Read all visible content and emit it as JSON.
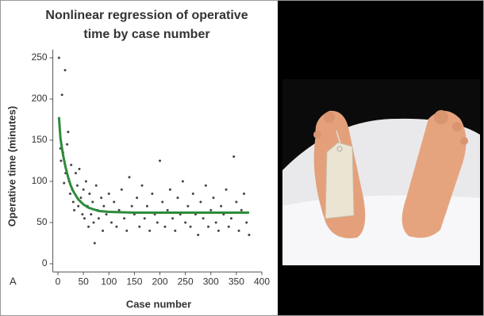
{
  "chart_data": {
    "type": "scatter",
    "title": [
      "Nonlinear regression of operative",
      "time by case number"
    ],
    "x_label": "Case number",
    "y_label": "Operative time (minutes)",
    "panel_label": "A",
    "xlim": [
      -10,
      400
    ],
    "ylim": [
      -10,
      260
    ],
    "xticks": [
      0,
      50,
      100,
      150,
      200,
      250,
      300,
      350,
      400
    ],
    "yticks": [
      0,
      50,
      100,
      150,
      200,
      250
    ],
    "series": [
      {
        "type": "scatter",
        "color": "#444444",
        "x": [
          2,
          5,
          6,
          8,
          10,
          12,
          14,
          15,
          18,
          20,
          22,
          24,
          26,
          28,
          30,
          32,
          35,
          38,
          40,
          42,
          45,
          48,
          50,
          52,
          55,
          58,
          60,
          62,
          65,
          68,
          70,
          72,
          75,
          78,
          80,
          85,
          88,
          90,
          95,
          100,
          105,
          110,
          115,
          120,
          125,
          130,
          135,
          140,
          145,
          150,
          155,
          160,
          165,
          170,
          175,
          180,
          185,
          190,
          195,
          200,
          205,
          210,
          215,
          220,
          225,
          230,
          235,
          240,
          245,
          250,
          255,
          260,
          265,
          270,
          275,
          280,
          285,
          290,
          295,
          300,
          305,
          310,
          315,
          320,
          325,
          330,
          335,
          340,
          345,
          350,
          355,
          360,
          365,
          370,
          375
        ],
        "values": [
          250,
          140,
          125,
          205,
          135,
          98,
          235,
          110,
          145,
          160,
          100,
          85,
          120,
          90,
          75,
          65,
          110,
          95,
          70,
          115,
          80,
          60,
          90,
          55,
          100,
          70,
          45,
          85,
          60,
          75,
          50,
          25,
          95,
          65,
          55,
          80,
          40,
          70,
          60,
          85,
          50,
          75,
          45,
          65,
          90,
          55,
          40,
          105,
          70,
          60,
          80,
          45,
          95,
          55,
          70,
          40,
          85,
          60,
          50,
          125,
          75,
          45,
          65,
          90,
          55,
          40,
          80,
          60,
          100,
          50,
          70,
          45,
          85,
          60,
          35,
          75,
          55,
          95,
          45,
          65,
          80,
          50,
          40,
          70,
          60,
          90,
          45,
          55,
          130,
          75,
          40,
          65,
          85,
          50,
          35
        ]
      },
      {
        "type": "line",
        "color": "#2e8b3a",
        "x": [
          2,
          5,
          10,
          15,
          20,
          25,
          30,
          40,
          50,
          60,
          80,
          100,
          150,
          200,
          250,
          300,
          375
        ],
        "values": [
          178,
          152,
          132,
          117,
          105,
          95,
          88,
          78,
          72,
          68,
          64,
          63,
          62,
          62,
          62,
          62,
          62
        ]
      }
    ]
  }
}
